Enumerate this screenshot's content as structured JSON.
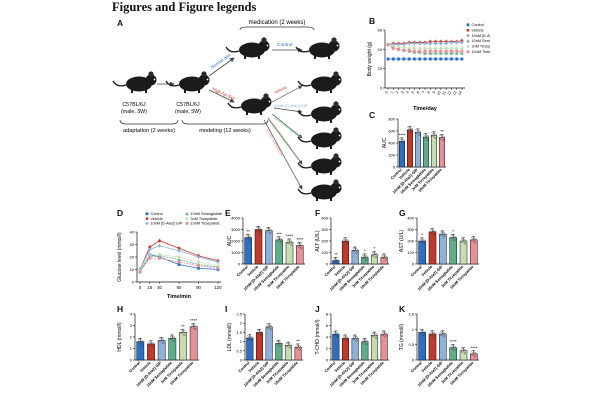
{
  "heading": "Figures and Figure legends",
  "panel_labels": {
    "A": "A",
    "B": "B",
    "C": "C",
    "D": "D",
    "E": "E",
    "F": "F",
    "G": "G",
    "H": "H",
    "I": "I",
    "J": "J",
    "K": "K"
  },
  "schematic": {
    "medication": "medication (2 weeks)",
    "mouse1_strain": "C57BL/6J",
    "mouse1_info": "(male, 3W)",
    "mouse2_strain": "C57BL/6J",
    "mouse2_info": "(male, 5W)",
    "adaptation": "adaptation (2 weeks)",
    "modeling": "modeling (12 weeks)",
    "diet_normal": "Normal diet",
    "diet_hfd": "High-fat diet",
    "arm_control": "Control",
    "arm_vehicle": "Vehicle",
    "arm_dala": "10nM [D-Ala2] GIP",
    "arm_sema": "10nM Semaglutide",
    "arm_tirz3": "3nM Tirzepatide",
    "arm_tirz10": "10nM Tirzepatide"
  },
  "colors": {
    "control": "#2e6fc4",
    "vehicle": "#c0392b",
    "dala": "#8fb0d8",
    "sema": "#5fae8a",
    "tirz3": "#c7dcb0",
    "tirz10": "#e6909a",
    "dark": "#222222"
  },
  "groups": [
    "Control",
    "Vehicle",
    "10nM [D-Ala2] GIP",
    "10nM Semaglutide",
    "3nM Tirzepatide",
    "10nM Tirzepatide"
  ],
  "chart_data": [
    {
      "id": "B",
      "type": "line",
      "ylabel": "Body weight (g)",
      "xlabel": "Time/day",
      "x": [
        0,
        1,
        2,
        3,
        4,
        5,
        6,
        7,
        8,
        9,
        10,
        11,
        12,
        13,
        14
      ],
      "ylim": [
        0,
        60
      ],
      "yticks": [
        0,
        20,
        40,
        60
      ],
      "series": [
        {
          "name": "Control",
          "values": [
            30,
            30,
            30,
            30,
            30,
            30,
            30,
            30,
            30,
            30,
            30,
            30,
            30,
            30,
            30
          ]
        },
        {
          "name": "Vehicle",
          "values": [
            45,
            46,
            46,
            46,
            47,
            47,
            47,
            47,
            48,
            48,
            48,
            48,
            48,
            48,
            49
          ]
        },
        {
          "name": "10nM [D-Ala2] GIP",
          "values": [
            45,
            45,
            45,
            45,
            46,
            46,
            46,
            46,
            46,
            46,
            46,
            46,
            47,
            47,
            47
          ]
        },
        {
          "name": "10nM Semaglutide",
          "values": [
            45,
            42,
            40,
            39,
            38,
            37,
            37,
            36,
            36,
            36,
            36,
            36,
            36,
            36,
            36
          ]
        },
        {
          "name": "3nM Tirzepatide",
          "values": [
            45,
            43,
            42,
            42,
            41,
            41,
            41,
            41,
            41,
            41,
            41,
            41,
            41,
            41,
            41
          ]
        },
        {
          "name": "10nM Tirzepatide",
          "values": [
            45,
            41,
            40,
            39,
            39,
            38,
            38,
            38,
            38,
            38,
            38,
            38,
            38,
            38,
            38
          ]
        }
      ]
    },
    {
      "id": "C",
      "type": "bar",
      "ylabel": "AUC",
      "ylim": [
        0,
        800
      ],
      "yticks": [
        0,
        200,
        400,
        600,
        800
      ],
      "values": [
        430,
        620,
        580,
        500,
        530,
        490
      ],
      "stars": [
        "****",
        "",
        "",
        "",
        "",
        "**"
      ]
    },
    {
      "id": "D",
      "type": "line",
      "ylabel": "Glucose level (mmol/l)",
      "xlabel": "Time/min",
      "x": [
        0,
        15,
        30,
        60,
        90,
        120
      ],
      "ylim": [
        0,
        40
      ],
      "yticks": [
        0,
        10,
        20,
        30,
        40
      ],
      "series": [
        {
          "name": "Control",
          "values": [
            8,
            22,
            20,
            14,
            11,
            10
          ]
        },
        {
          "name": "Vehicle",
          "values": [
            10,
            28,
            33,
            27,
            21,
            17
          ]
        },
        {
          "name": "10nM [D-Ala2] GIP",
          "values": [
            10,
            26,
            29,
            25,
            20,
            16
          ]
        },
        {
          "name": "10nM Semaglutide",
          "values": [
            9,
            20,
            21,
            18,
            14,
            12
          ]
        },
        {
          "name": "3nM Tirzepatide",
          "values": [
            9,
            22,
            22,
            20,
            16,
            13
          ]
        },
        {
          "name": "10nM Tirzepatide",
          "values": [
            8,
            19,
            19,
            16,
            13,
            11
          ]
        }
      ]
    },
    {
      "id": "E",
      "type": "bar",
      "ylabel": "AUC",
      "ylim": [
        0,
        4000
      ],
      "yticks": [
        0,
        1000,
        2000,
        3000,
        4000
      ],
      "values": [
        2300,
        3000,
        2900,
        2100,
        1900,
        1600
      ],
      "stars": [
        "**",
        "",
        "",
        "***",
        "****",
        "****"
      ]
    },
    {
      "id": "F",
      "type": "bar",
      "ylabel": "ALT (U/L)",
      "ylim": [
        0,
        400
      ],
      "yticks": [
        0,
        100,
        200,
        300,
        400
      ],
      "values": [
        30,
        200,
        120,
        60,
        80,
        60
      ],
      "stars": [
        "**",
        "",
        "",
        "*",
        "*",
        ""
      ]
    },
    {
      "id": "G",
      "type": "bar",
      "ylabel": "AST (U/L)",
      "ylim": [
        0,
        400
      ],
      "yticks": [
        0,
        100,
        200,
        300,
        400
      ],
      "values": [
        200,
        280,
        260,
        230,
        200,
        210
      ],
      "stars": [
        "*",
        "",
        "",
        "*",
        "",
        ""
      ]
    },
    {
      "id": "H",
      "type": "bar",
      "ylabel": "HDL (mmol/l)",
      "ylim": [
        0,
        4
      ],
      "yticks": [
        0,
        1,
        2,
        3,
        4
      ],
      "values": [
        1.6,
        1.4,
        1.7,
        1.9,
        2.4,
        2.9
      ],
      "stars": [
        "",
        "",
        "",
        "",
        "**",
        "****"
      ]
    },
    {
      "id": "I",
      "type": "bar",
      "ylabel": "LDL (mmol/l)",
      "ylim": [
        0,
        2.5
      ],
      "yticks": [
        0,
        0.5,
        1,
        1.5,
        2,
        2.5
      ],
      "values": [
        1.2,
        1.5,
        1.8,
        0.9,
        0.8,
        0.7
      ],
      "stars": [
        "",
        "",
        "",
        "",
        "",
        "**"
      ]
    },
    {
      "id": "J",
      "type": "bar",
      "ylabel": "T-CHO (mmol/l)",
      "ylim": [
        0,
        8
      ],
      "yticks": [
        0,
        2,
        4,
        6,
        8
      ],
      "values": [
        4.5,
        3.8,
        3.8,
        3.2,
        4.3,
        4.5
      ],
      "stars": [
        "",
        "",
        "",
        "",
        "",
        ""
      ]
    },
    {
      "id": "K",
      "type": "bar",
      "ylabel": "TG (mmol/l)",
      "ylim": [
        0,
        1.5
      ],
      "yticks": [
        0,
        0.5,
        1,
        1.5
      ],
      "values": [
        0.9,
        0.85,
        0.85,
        0.4,
        0.3,
        0.2
      ],
      "stars": [
        "",
        "",
        "",
        "****",
        "",
        "****"
      ]
    }
  ]
}
